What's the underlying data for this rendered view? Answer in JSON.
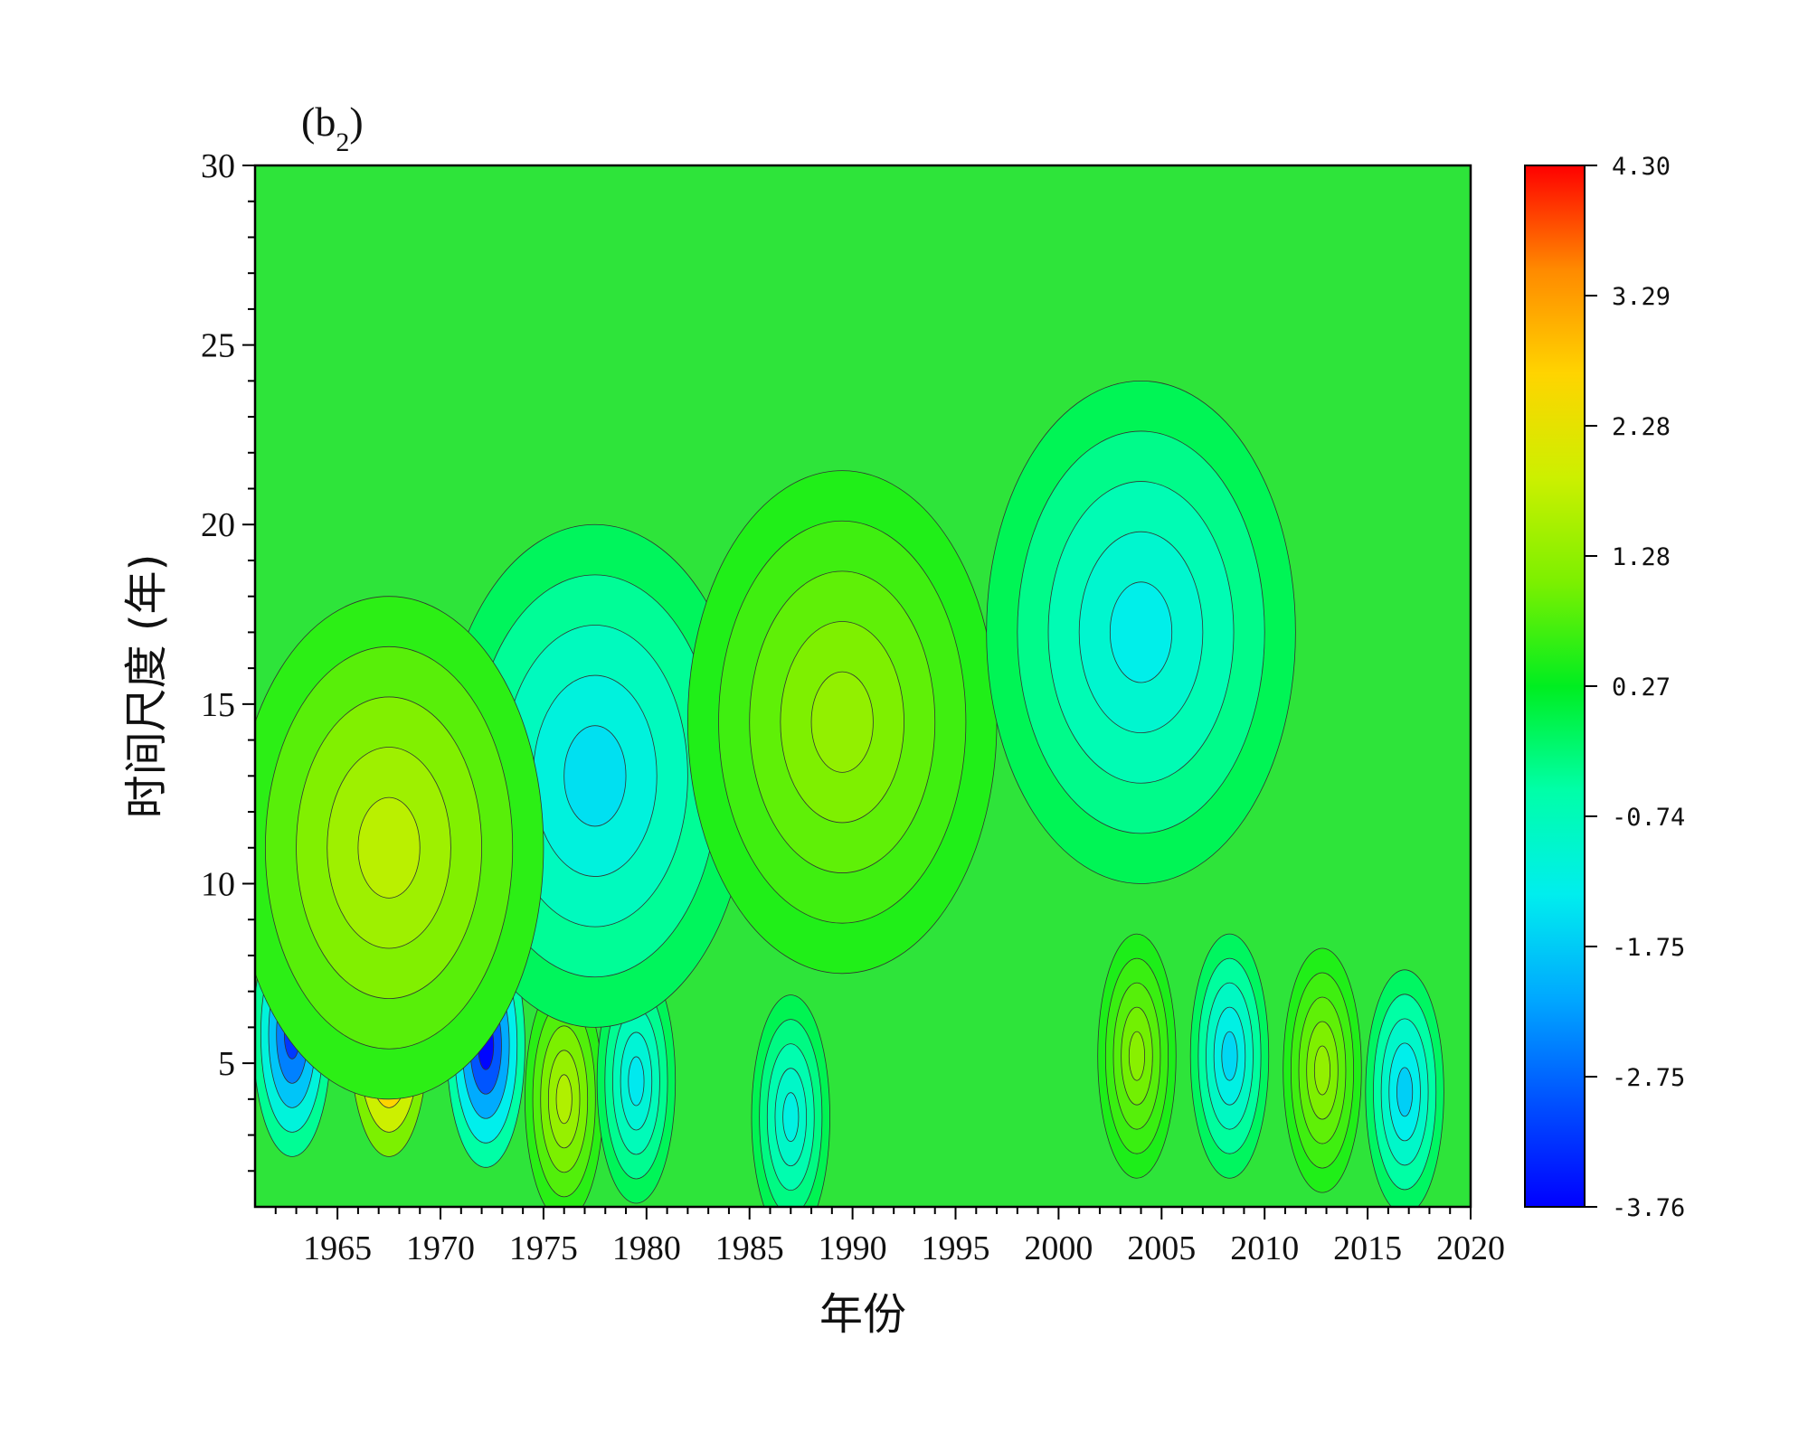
{
  "chart_data": {
    "type": "heatmap",
    "panel_label": "b",
    "panel_label_sub": "2",
    "xlabel": "年份",
    "ylabel": "时间尺度 (年)",
    "xlim": [
      1961,
      2020
    ],
    "ylim": [
      1,
      30
    ],
    "x_ticks": [
      1965,
      1970,
      1975,
      1980,
      1985,
      1990,
      1995,
      2000,
      2005,
      2010,
      2015,
      2020
    ],
    "y_ticks": [
      5,
      10,
      15,
      20,
      25,
      30
    ],
    "colorbar": {
      "min": -3.76,
      "max": 4.3,
      "tick_labels": [
        "4.30",
        "3.29",
        "2.28",
        "1.28",
        "0.27",
        "-0.74",
        "-1.75",
        "-2.75",
        "-3.76"
      ],
      "colors": [
        "#0000ff",
        "#0050ff",
        "#00a8ff",
        "#00eeee",
        "#00ffa8",
        "#00ee20",
        "#7cf000",
        "#ccf000",
        "#ffd400",
        "#ff8a00",
        "#ff0000"
      ]
    },
    "features": [
      {
        "year": 1962.8,
        "scale": 5.8,
        "value": -3.2
      },
      {
        "year": 1967.5,
        "scale": 5.8,
        "value": 4.3
      },
      {
        "year": 1972.2,
        "scale": 5.5,
        "value": -3.7
      },
      {
        "year": 1976.0,
        "scale": 4.0,
        "value": 1.6
      },
      {
        "year": 1979.5,
        "scale": 4.5,
        "value": -1.4
      },
      {
        "year": 1987.0,
        "scale": 3.5,
        "value": -1.2
      },
      {
        "year": 2003.8,
        "scale": 5.2,
        "value": 1.2
      },
      {
        "year": 2008.3,
        "scale": 5.2,
        "value": -1.6
      },
      {
        "year": 2012.8,
        "scale": 4.8,
        "value": 1.3
      },
      {
        "year": 2016.8,
        "scale": 4.2,
        "value": -1.7
      },
      {
        "year": 1977.5,
        "scale": 13.0,
        "value": -1.5
      },
      {
        "year": 1967.5,
        "scale": 11.0,
        "value": 1.7
      },
      {
        "year": 1989.5,
        "scale": 14.5,
        "value": 1.3
      },
      {
        "year": 2004.0,
        "scale": 17.0,
        "value": -1.3
      }
    ]
  }
}
